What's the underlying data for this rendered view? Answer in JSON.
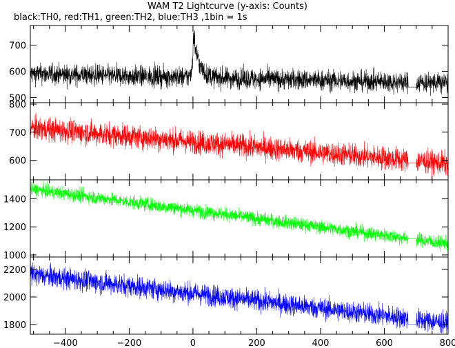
{
  "title": "WAM T2 Lightcurve (y-axis: Counts)",
  "subtitle": "black:TH0, red:TH1, green:TH2, blue:TH3 ,1bin = 1s",
  "chart_data": {
    "type": "line",
    "x_range": [
      -510,
      800
    ],
    "x_ticks": [
      -400,
      -200,
      0,
      200,
      400,
      600,
      800
    ],
    "x_tick_labels": [
      "−400",
      "−200",
      "0",
      "200",
      "400",
      "600",
      "800"
    ],
    "data_gap": [
      675,
      700
    ],
    "panels": [
      {
        "name": "TH0",
        "color": "#000000",
        "ylim": [
          480,
          775
        ],
        "y_ticks": [
          500,
          600,
          700
        ],
        "y_tick_labels": [
          "500",
          "600",
          "700"
        ],
        "start_level": 590,
        "end_level": 555,
        "noise": 28,
        "gap_level": 540,
        "peak": {
          "x": 2,
          "height": 190,
          "rise": 4,
          "decay": 16
        }
      },
      {
        "name": "TH1",
        "color": "#ff0000",
        "ylim": [
          530,
          805
        ],
        "y_ticks": [
          600,
          700,
          800
        ],
        "y_tick_labels": [
          "600",
          "700",
          "800"
        ],
        "start_level": 715,
        "end_level": 588,
        "noise": 30,
        "gap_level": 590
      },
      {
        "name": "TH2",
        "color": "#00ff00",
        "ylim": [
          985,
          1535
        ],
        "y_ticks": [
          1000,
          1200,
          1400
        ],
        "y_tick_labels": [
          "1000",
          "1200",
          "1400"
        ],
        "start_level": 1470,
        "end_level": 1080,
        "noise": 35,
        "gap_level": 1115
      },
      {
        "name": "TH3",
        "color": "#0000ff",
        "ylim": [
          1730,
          2290
        ],
        "y_ticks": [
          1800,
          2000,
          2200
        ],
        "y_tick_labels": [
          "1800",
          "2000",
          "2200"
        ],
        "start_level": 2165,
        "end_level": 1810,
        "noise": 55,
        "gap_level": 1800
      }
    ]
  }
}
